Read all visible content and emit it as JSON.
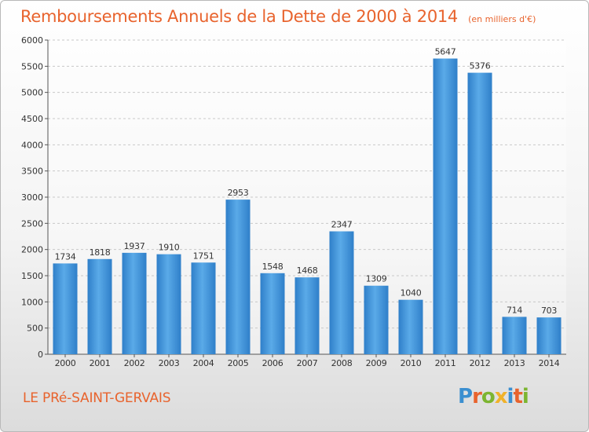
{
  "chart_data": {
    "type": "bar",
    "title": "Remboursements Annuels de la Dette de 2000 à 2014",
    "subtitle": "(en milliers d'€)",
    "categories": [
      "2000",
      "2001",
      "2002",
      "2003",
      "2004",
      "2005",
      "2006",
      "2007",
      "2008",
      "2009",
      "2010",
      "2011",
      "2012",
      "2013",
      "2014"
    ],
    "values": [
      1734,
      1818,
      1937,
      1910,
      1751,
      2953,
      1548,
      1468,
      2347,
      1309,
      1040,
      5647,
      5376,
      714,
      703
    ],
    "ylim": [
      0,
      6000
    ],
    "yticks": [
      0,
      500,
      1000,
      1500,
      2000,
      2500,
      3000,
      3500,
      4000,
      4500,
      5000,
      5500,
      6000
    ],
    "grid": true,
    "bar_color": "#3d8fd8",
    "title_color": "#e8632d"
  },
  "footer": {
    "town": "LE PRé-SAINT-GERVAIS",
    "brand": "Proxiti",
    "brand_letters": [
      {
        "ch": "P",
        "color": "#3b8fd0"
      },
      {
        "ch": "r",
        "color": "#e8632d"
      },
      {
        "ch": "o",
        "color": "#7cb531"
      },
      {
        "ch": "x",
        "color": "#f0b22a"
      },
      {
        "ch": "i",
        "color": "#3b8fd0"
      },
      {
        "ch": "t",
        "color": "#e8632d"
      },
      {
        "ch": "i",
        "color": "#7cb531"
      }
    ]
  }
}
